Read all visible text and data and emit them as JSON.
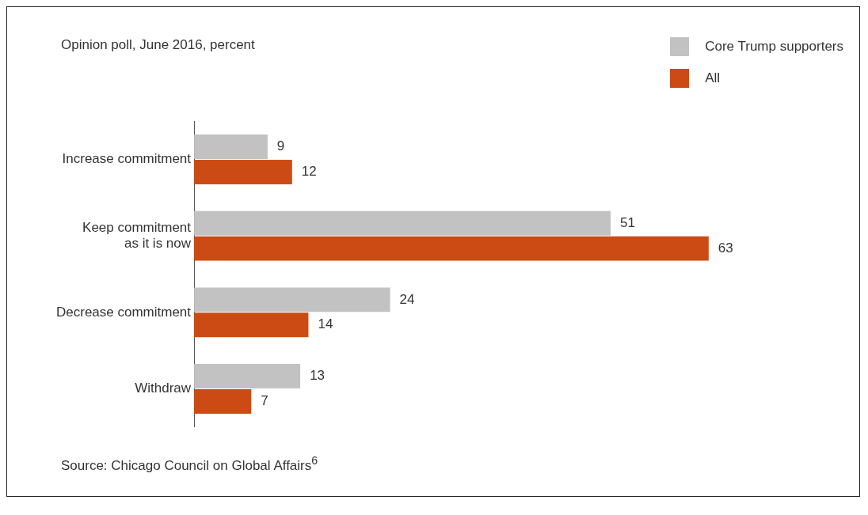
{
  "chart_data": {
    "type": "bar",
    "orientation": "horizontal",
    "title": "Opinion poll, June 2016, percent",
    "categories": [
      "Increase commitment",
      "Keep commitment\nas it is now",
      "Decrease commitment",
      "Withdraw"
    ],
    "series": [
      {
        "name": "Core Trump supporters",
        "color": "#c2c2c2",
        "values": [
          9,
          51,
          24,
          13
        ]
      },
      {
        "name": "All",
        "color": "#cc4b14",
        "values": [
          12,
          63,
          14,
          7
        ]
      }
    ],
    "data_labels": true,
    "legend": "top right",
    "grid": false,
    "annotations": [
      "Source: Chicago Council on Global Affairs$^{6}$"
    ]
  }
}
